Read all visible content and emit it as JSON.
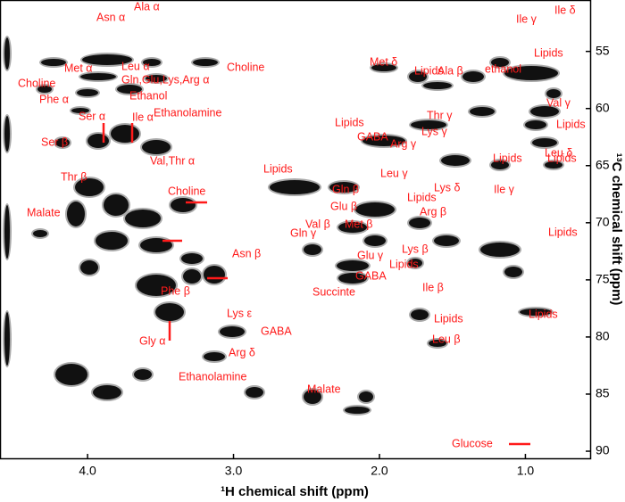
{
  "chart_data": {
    "type": "contour",
    "xlabel": "¹H chemical shift (ppm)",
    "ylabel": "¹³C chemical shift (ppm)",
    "xlim": [
      4.6,
      0.55
    ],
    "ylim": [
      50.5,
      90.7
    ],
    "xticks": [
      {
        "value": 4,
        "label": "4.0"
      },
      {
        "value": 3,
        "label": "3.0"
      },
      {
        "value": 2,
        "label": "2.0"
      },
      {
        "value": 1,
        "label": "1.0"
      }
    ],
    "yticks": [
      55,
      60,
      65,
      70,
      75,
      80,
      85,
      90
    ],
    "annotations": [
      "Ala α",
      "Asn α",
      "Ile γ",
      "Ile δ",
      "Lipids",
      "Met δ",
      "Met α",
      "Leu α",
      "Choline",
      "Lipids",
      "Ala β",
      "ethanol",
      "Gln,Glu,Lys,Arg α",
      "Choline",
      "Phe α",
      "Ethanol",
      "Val γ",
      "Ser α",
      "Ile α",
      "Ethanolamine",
      "Thr γ",
      "Lipids",
      "Lipids",
      "Lys γ",
      "Ser β",
      "GABA",
      "Leu δ",
      "Arg γ",
      "Val,Thr α",
      "Lipids",
      "Lipids",
      "Lipids",
      "Leu γ",
      "Thr β",
      "Gln β",
      "Ile γ",
      "Choline",
      "Lys δ",
      "Lipids",
      "Glu β",
      "Malate",
      "Val β",
      "Met β",
      "Arg β",
      "Lipids",
      "Gln γ",
      "Lys β",
      "Asn β",
      "Glu γ",
      "Lipids",
      "GABA",
      "Succinte",
      "Ile β",
      "Phe β",
      "Lys ε",
      "Lipids",
      "Lipids",
      "GABA",
      "Gly α",
      "Arg δ",
      "Leu β",
      "Ethanolamine",
      "Malate",
      "Glucose"
    ]
  }
}
